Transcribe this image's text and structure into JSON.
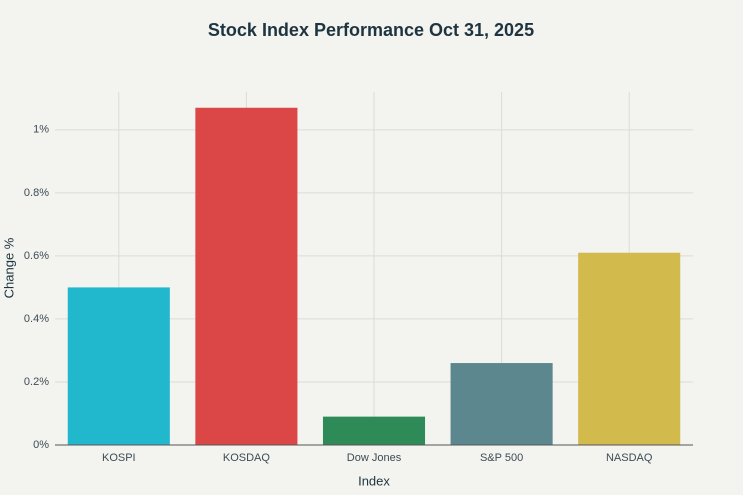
{
  "chart_data": {
    "type": "bar",
    "title": "Stock Index Performance Oct 31, 2025",
    "x_label": "Index",
    "y_label": "Change %",
    "categories": [
      "KOSPI",
      "KOSDAQ",
      "Dow Jones",
      "S&P 500",
      "NASDAQ"
    ],
    "values": [
      0.5,
      1.07,
      0.09,
      0.26,
      0.61
    ],
    "colors": [
      "#21b8cd",
      "#db4646",
      "#2e8b57",
      "#5d878f",
      "#d2ba4c"
    ],
    "ylim": [
      0,
      1.12
    ],
    "yticks": [
      {
        "value": 0,
        "label": "0%"
      },
      {
        "value": 0.2,
        "label": "0.2%"
      },
      {
        "value": 0.4,
        "label": "0.4%"
      },
      {
        "value": 0.6,
        "label": "0.6%"
      },
      {
        "value": 0.8,
        "label": "0.8%"
      },
      {
        "value": 1,
        "label": "1%"
      }
    ],
    "grid": true
  }
}
